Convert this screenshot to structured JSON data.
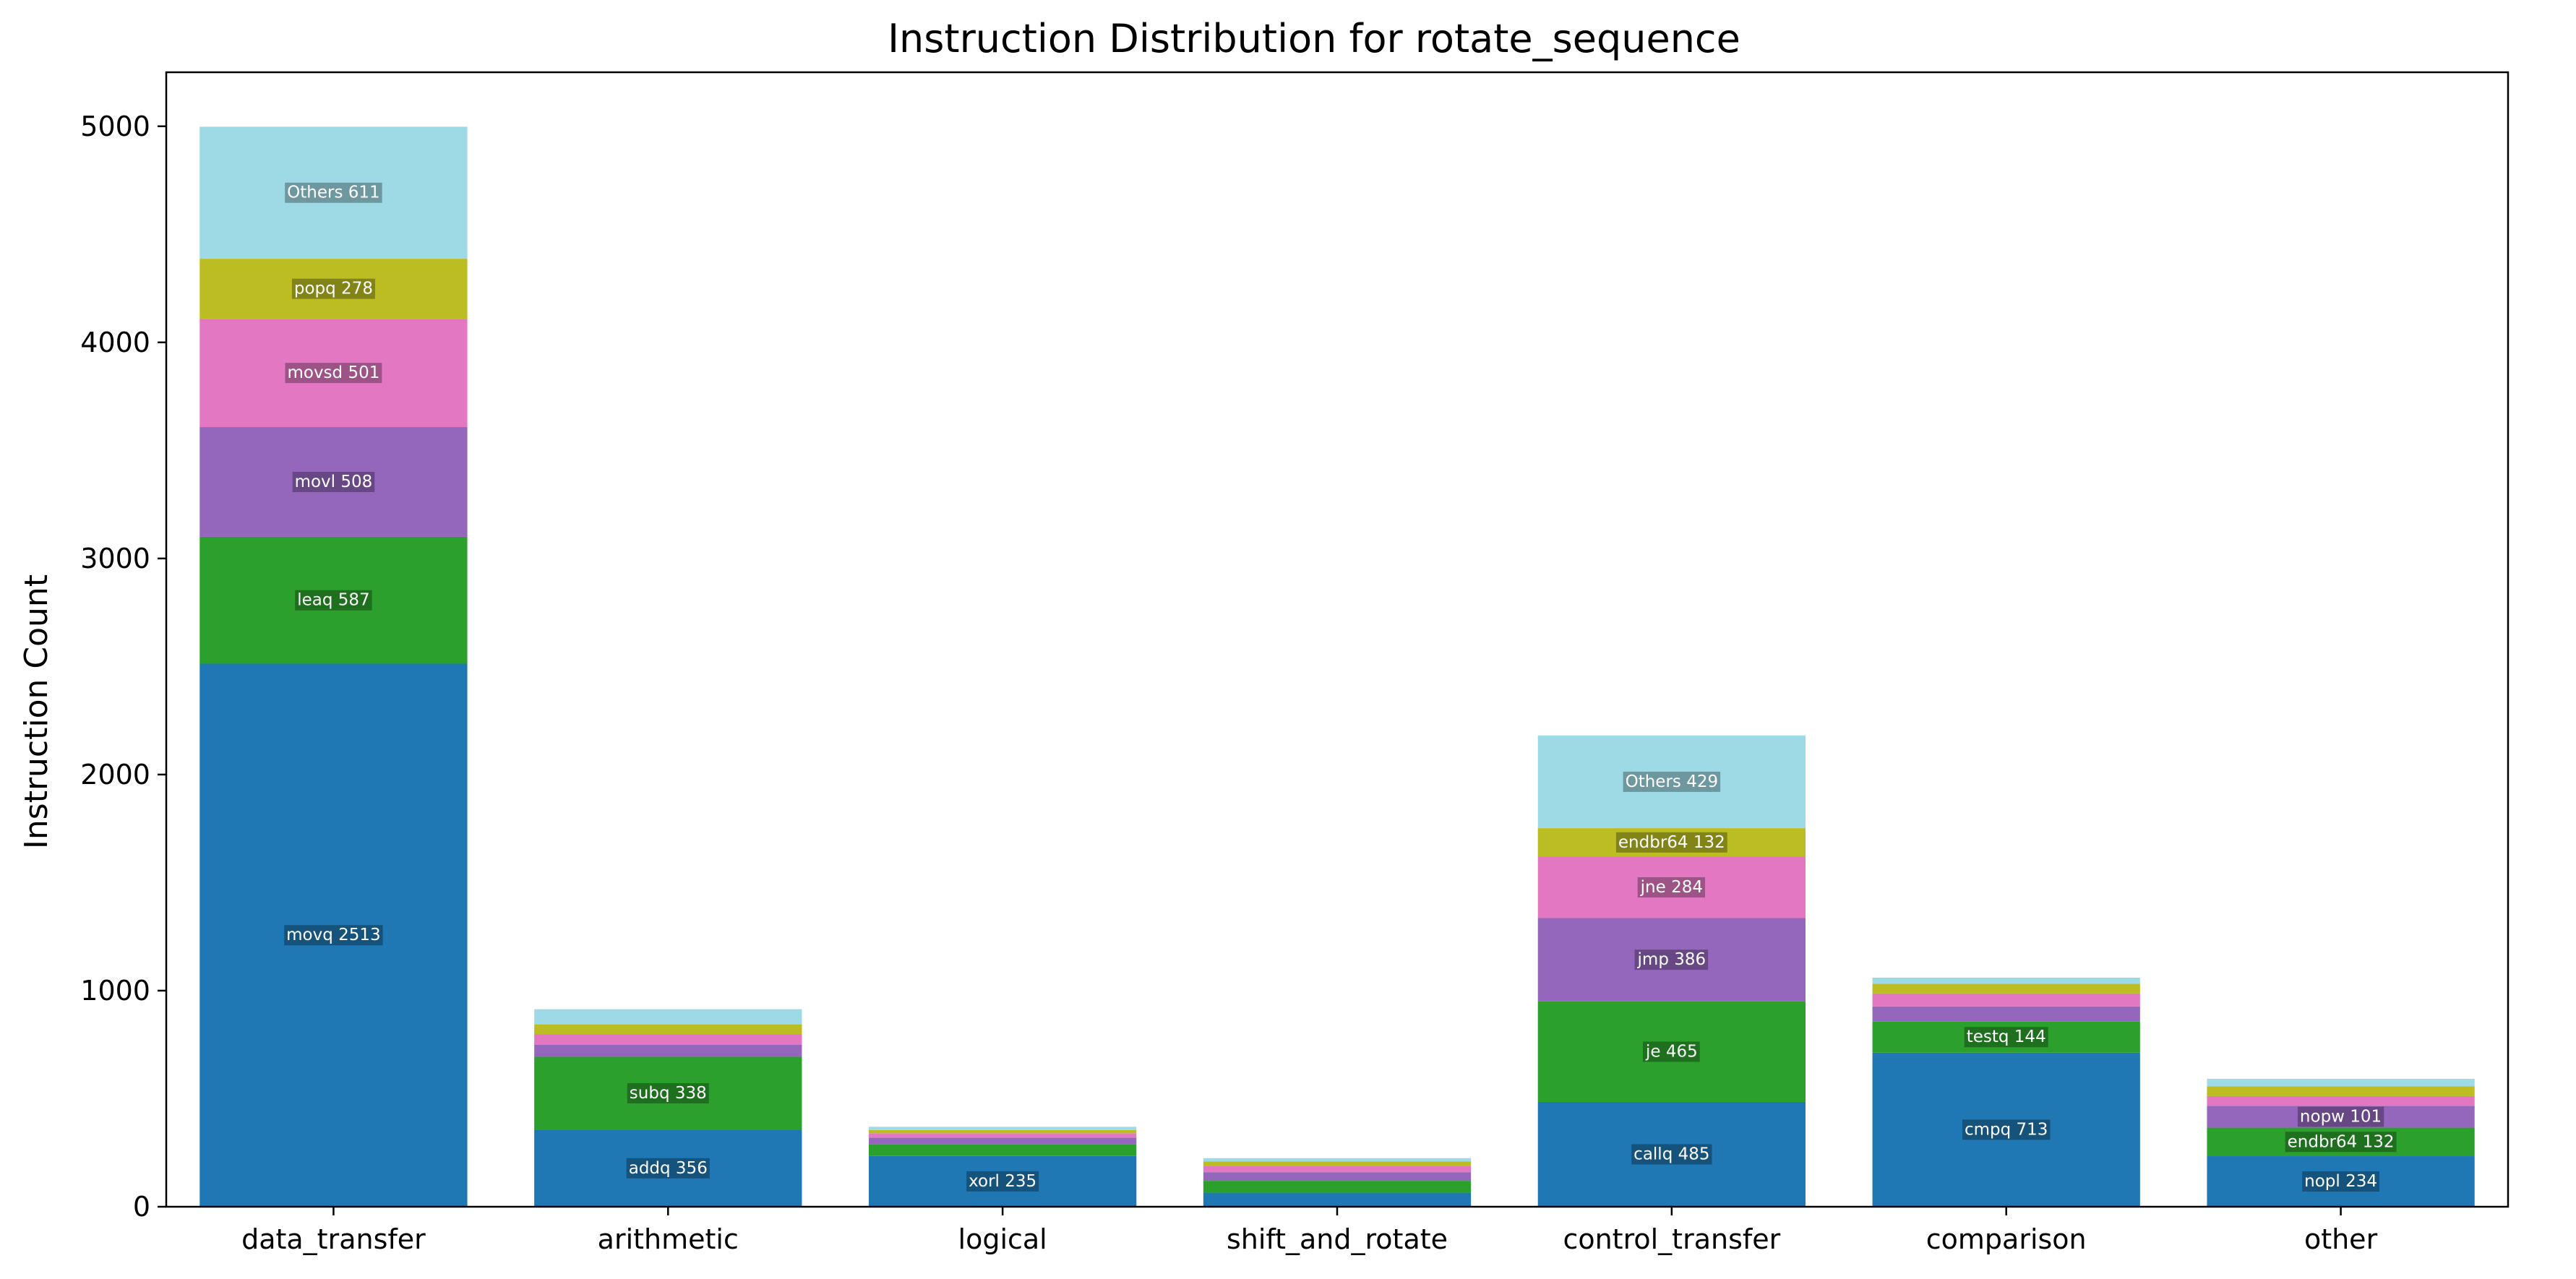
{
  "chart_data": {
    "type": "bar",
    "stacked": true,
    "title": "Instruction Distribution for rotate_sequence",
    "xlabel": "",
    "ylabel": "Instruction Count",
    "ylim": [
      0,
      5250
    ],
    "yticks": [
      0,
      1000,
      2000,
      3000,
      4000,
      5000
    ],
    "grid": false,
    "legend": "none",
    "categories": [
      "data_transfer",
      "arithmetic",
      "logical",
      "shift_and_rotate",
      "control_transfer",
      "comparison",
      "other"
    ],
    "layer_colors": [
      "#1f77b4",
      "#2ca02c",
      "#9467bd",
      "#e377c2",
      "#bcbd22",
      "#9edae5"
    ],
    "stacks": [
      [
        {
          "value": 2513,
          "label": "movq 2513"
        },
        {
          "value": 587,
          "label": "leaq 587"
        },
        {
          "value": 508,
          "label": "movl 508"
        },
        {
          "value": 501,
          "label": "movsd 501"
        },
        {
          "value": 278,
          "label": "popq 278"
        },
        {
          "value": 611,
          "label": "Others 611"
        }
      ],
      [
        {
          "value": 356,
          "label": "addq 356"
        },
        {
          "value": 338,
          "label": "subq 338"
        },
        {
          "value": 55,
          "label": ""
        },
        {
          "value": 50,
          "label": ""
        },
        {
          "value": 45,
          "label": ""
        },
        {
          "value": 70,
          "label": ""
        }
      ],
      [
        {
          "value": 235,
          "label": "xorl 235"
        },
        {
          "value": 55,
          "label": ""
        },
        {
          "value": 30,
          "label": ""
        },
        {
          "value": 20,
          "label": ""
        },
        {
          "value": 15,
          "label": ""
        },
        {
          "value": 15,
          "label": ""
        }
      ],
      [
        {
          "value": 65,
          "label": ""
        },
        {
          "value": 55,
          "label": ""
        },
        {
          "value": 40,
          "label": ""
        },
        {
          "value": 30,
          "label": ""
        },
        {
          "value": 20,
          "label": ""
        },
        {
          "value": 15,
          "label": ""
        }
      ],
      [
        {
          "value": 485,
          "label": "callq 485"
        },
        {
          "value": 465,
          "label": "je 465"
        },
        {
          "value": 386,
          "label": "jmp 386"
        },
        {
          "value": 284,
          "label": "jne 284"
        },
        {
          "value": 132,
          "label": "endbr64 132"
        },
        {
          "value": 429,
          "label": "Others 429"
        }
      ],
      [
        {
          "value": 713,
          "label": "cmpq 713"
        },
        {
          "value": 144,
          "label": "testq 144"
        },
        {
          "value": 70,
          "label": ""
        },
        {
          "value": 60,
          "label": ""
        },
        {
          "value": 45,
          "label": ""
        },
        {
          "value": 28,
          "label": ""
        }
      ],
      [
        {
          "value": 234,
          "label": "nopl 234"
        },
        {
          "value": 132,
          "label": "endbr64 132"
        },
        {
          "value": 101,
          "label": "nopw 101"
        },
        {
          "value": 45,
          "label": ""
        },
        {
          "value": 45,
          "label": ""
        },
        {
          "value": 35,
          "label": ""
        }
      ]
    ]
  }
}
